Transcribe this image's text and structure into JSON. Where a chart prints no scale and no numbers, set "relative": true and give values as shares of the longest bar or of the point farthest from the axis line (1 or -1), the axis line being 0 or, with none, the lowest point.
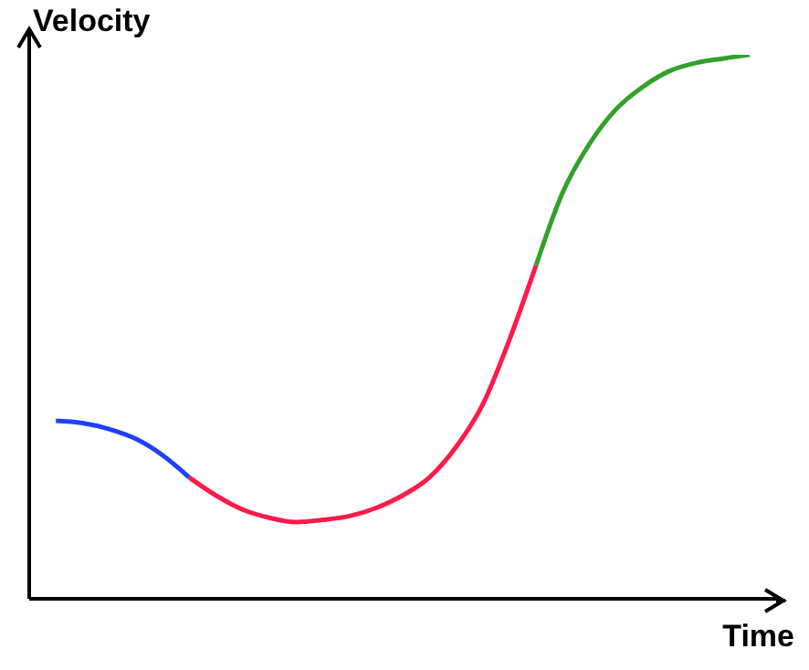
{
  "chart_data": {
    "type": "line",
    "xlabel": "Time",
    "ylabel": "Velocity",
    "relative": true,
    "marker": "none",
    "categories": [
      null,
      null,
      null,
      null,
      null,
      null,
      null,
      null,
      null,
      null,
      null,
      null,
      null,
      null,
      null,
      null,
      null,
      null,
      null,
      null,
      null,
      null,
      null,
      null,
      null,
      null,
      null
    ],
    "series": [
      {
        "color": "#2040ff",
        "values": [
          0.327,
          0.323,
          0.312,
          0.294,
          0.264,
          0.223,
          null,
          null,
          null,
          null,
          null,
          null,
          null,
          null,
          null,
          null,
          null,
          null,
          null,
          null,
          null,
          null,
          null,
          null,
          null,
          null,
          null
        ]
      },
      {
        "color": "#ff1a4a",
        "values": [
          null,
          null,
          null,
          null,
          null,
          0.223,
          0.19,
          0.164,
          0.149,
          0.141,
          0.145,
          0.152,
          0.167,
          0.19,
          0.223,
          0.279,
          0.357,
          0.476,
          0.613,
          null,
          null,
          null,
          null,
          null,
          null,
          null,
          null
        ]
      },
      {
        "color": "#33a02c",
        "values": [
          null,
          null,
          null,
          null,
          null,
          null,
          null,
          null,
          null,
          null,
          null,
          null,
          null,
          null,
          null,
          null,
          null,
          null,
          0.613,
          0.747,
          0.836,
          0.9,
          0.941,
          0.97,
          0.985,
          0.993,
          1
        ]
      }
    ]
  }
}
